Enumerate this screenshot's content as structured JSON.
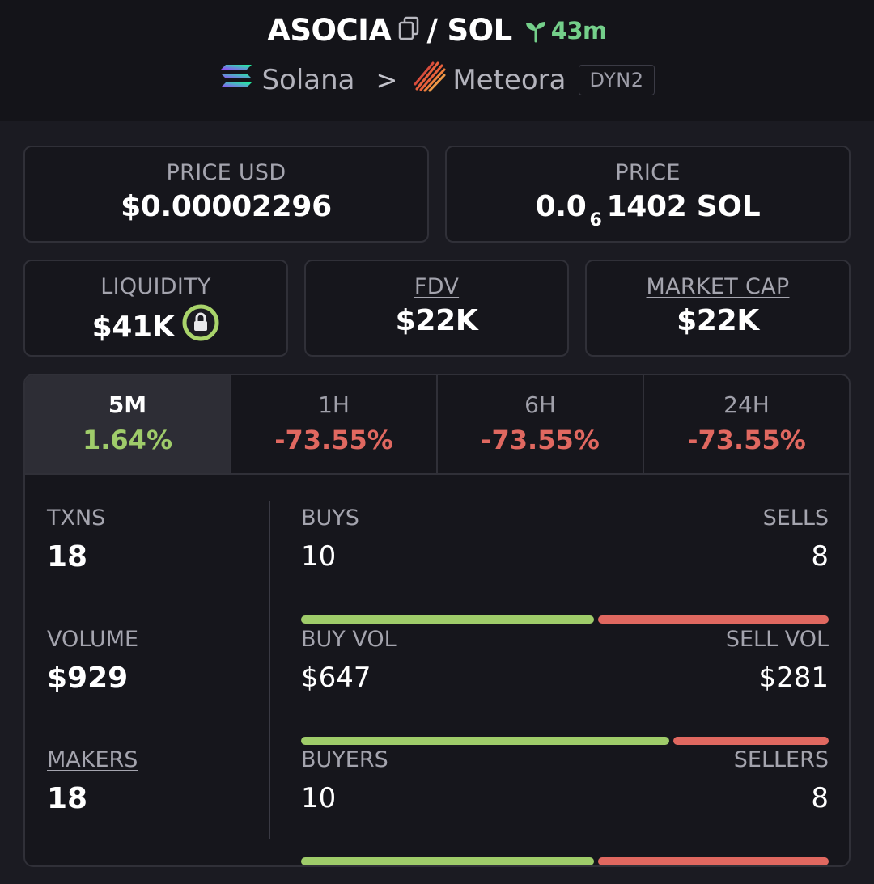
{
  "header": {
    "token": "ASOCIA",
    "separator": "/",
    "quote": "SOL",
    "age": "43m",
    "chain": "Solana",
    "chevron": ">",
    "dex": "Meteora",
    "pool_type": "DYN2"
  },
  "price_usd": {
    "label": "PRICE USD",
    "value": "$0.00002296"
  },
  "price_native": {
    "label": "PRICE",
    "prefix": "0.0",
    "zeros": "6",
    "suffix": "1402 SOL"
  },
  "liquidity": {
    "label": "LIQUIDITY",
    "value": "$41K"
  },
  "fdv": {
    "label": "FDV",
    "value": "$22K"
  },
  "market_cap": {
    "label": "MARKET CAP",
    "value": "$22K"
  },
  "tabs": [
    {
      "label": "5M",
      "value": "1.64%"
    },
    {
      "label": "1H",
      "value": "-73.55%"
    },
    {
      "label": "6H",
      "value": "-73.55%"
    },
    {
      "label": "24H",
      "value": "-73.55%"
    }
  ],
  "stats": {
    "txns": {
      "label": "TXNS",
      "value": "18"
    },
    "volume": {
      "label": "VOLUME",
      "value": "$929"
    },
    "makers": {
      "label": "MAKERS",
      "value": "18"
    },
    "buys": {
      "label": "BUYS",
      "value": "10"
    },
    "sells": {
      "label": "SELLS",
      "value": "8"
    },
    "buy_vol": {
      "label": "BUY VOL",
      "value": "$647"
    },
    "sell_vol": {
      "label": "SELL VOL",
      "value": "$281"
    },
    "buyers": {
      "label": "BUYERS",
      "value": "10"
    },
    "sellers": {
      "label": "SELLERS",
      "value": "8"
    }
  },
  "colors": {
    "positive": "#9fcc6a",
    "negative": "#e06860",
    "age_green": "#74cf8a"
  },
  "icons": [
    "copy-icon",
    "sprout-icon",
    "solana-logo",
    "chevron-right-icon",
    "meteora-logo",
    "lock-icon"
  ]
}
